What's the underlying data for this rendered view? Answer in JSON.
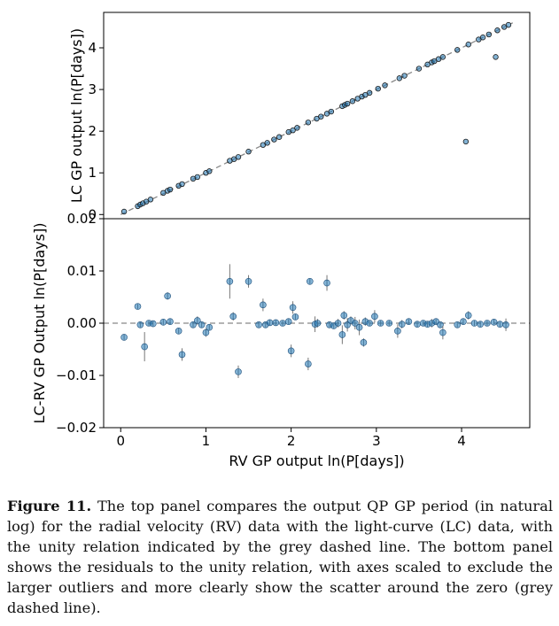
{
  "chart_data": [
    {
      "type": "scatter",
      "panel": "top",
      "xlabel": "",
      "ylabel": "LC GP output ln(P[days])",
      "xlim": [
        -0.2,
        4.8
      ],
      "ylim": [
        -0.1,
        4.85
      ],
      "yticks": [
        0,
        1,
        2,
        3,
        4
      ],
      "reference_line": "unity (y = x), grey dashed",
      "points": [
        [
          0.04,
          0.07
        ],
        [
          0.2,
          0.2
        ],
        [
          0.23,
          0.24
        ],
        [
          0.26,
          0.27
        ],
        [
          0.3,
          0.31
        ],
        [
          0.35,
          0.36
        ],
        [
          0.5,
          0.52
        ],
        [
          0.55,
          0.57
        ],
        [
          0.58,
          0.6
        ],
        [
          0.68,
          0.69
        ],
        [
          0.72,
          0.73
        ],
        [
          0.85,
          0.86
        ],
        [
          0.9,
          0.9
        ],
        [
          1.0,
          1.0
        ],
        [
          1.04,
          1.04
        ],
        [
          1.28,
          1.29
        ],
        [
          1.33,
          1.33
        ],
        [
          1.38,
          1.38
        ],
        [
          1.5,
          1.51
        ],
        [
          1.67,
          1.67
        ],
        [
          1.72,
          1.72
        ],
        [
          1.8,
          1.8
        ],
        [
          1.86,
          1.86
        ],
        [
          1.97,
          1.98
        ],
        [
          2.02,
          2.02
        ],
        [
          2.07,
          2.08
        ],
        [
          2.2,
          2.21
        ],
        [
          2.3,
          2.3
        ],
        [
          2.35,
          2.35
        ],
        [
          2.42,
          2.42
        ],
        [
          2.47,
          2.47
        ],
        [
          2.6,
          2.6
        ],
        [
          2.63,
          2.63
        ],
        [
          2.66,
          2.66
        ],
        [
          2.72,
          2.72
        ],
        [
          2.78,
          2.78
        ],
        [
          2.83,
          2.83
        ],
        [
          2.87,
          2.87
        ],
        [
          2.92,
          2.92
        ],
        [
          3.02,
          3.02
        ],
        [
          3.1,
          3.1
        ],
        [
          3.27,
          3.27
        ],
        [
          3.33,
          3.33
        ],
        [
          3.5,
          3.5
        ],
        [
          3.6,
          3.6
        ],
        [
          3.65,
          3.65
        ],
        [
          3.68,
          3.68
        ],
        [
          3.73,
          3.73
        ],
        [
          3.78,
          3.78
        ],
        [
          3.95,
          3.95
        ],
        [
          4.08,
          4.08
        ],
        [
          4.2,
          4.2
        ],
        [
          4.25,
          4.25
        ],
        [
          4.32,
          4.32
        ],
        [
          4.42,
          4.42
        ],
        [
          4.5,
          4.5
        ],
        [
          4.55,
          4.55
        ],
        [
          4.05,
          1.75
        ],
        [
          4.4,
          3.78
        ]
      ]
    },
    {
      "type": "scatter",
      "panel": "bottom",
      "xlabel": "RV GP output ln(P[days])",
      "ylabel": "LC-RV GP Output ln(P[days])",
      "xlim": [
        -0.2,
        4.8
      ],
      "ylim": [
        -0.02,
        0.02
      ],
      "xticks": [
        0,
        1,
        2,
        3,
        4
      ],
      "yticks": [
        -0.02,
        -0.01,
        0.0,
        0.01,
        0.02
      ],
      "reference_line": "zero, grey dashed",
      "points_with_error": [
        [
          0.04,
          -0.0027,
          0.0005
        ],
        [
          0.2,
          0.0032,
          0.0005
        ],
        [
          0.23,
          -0.0003,
          0.0005
        ],
        [
          0.28,
          -0.0045,
          0.0028
        ],
        [
          0.33,
          0.0,
          0.0005
        ],
        [
          0.38,
          -0.0001,
          0.0005
        ],
        [
          0.5,
          0.0002,
          0.0005
        ],
        [
          0.55,
          0.0052,
          0.0007
        ],
        [
          0.58,
          0.0003,
          0.0005
        ],
        [
          0.68,
          -0.0015,
          0.0005
        ],
        [
          0.72,
          -0.006,
          0.0012
        ],
        [
          0.85,
          -0.0003,
          0.0005
        ],
        [
          0.9,
          0.0005,
          0.0008
        ],
        [
          0.95,
          -0.0003,
          0.0005
        ],
        [
          1.0,
          -0.0018,
          0.0008
        ],
        [
          1.04,
          -0.0008,
          0.0005
        ],
        [
          1.28,
          0.008,
          0.0033
        ],
        [
          1.32,
          0.0013,
          0.0008
        ],
        [
          1.38,
          -0.0093,
          0.0012
        ],
        [
          1.5,
          0.008,
          0.0012
        ],
        [
          1.62,
          -0.0003,
          0.0005
        ],
        [
          1.67,
          0.0035,
          0.0012
        ],
        [
          1.7,
          -0.0003,
          0.0005
        ],
        [
          1.75,
          0.0001,
          0.0005
        ],
        [
          1.82,
          0.0001,
          0.0005
        ],
        [
          1.9,
          0.0,
          0.0005
        ],
        [
          1.97,
          0.0003,
          0.0005
        ],
        [
          2.0,
          -0.0053,
          0.0012
        ],
        [
          2.02,
          0.003,
          0.0012
        ],
        [
          2.05,
          0.0012,
          0.0005
        ],
        [
          2.2,
          -0.0078,
          0.0012
        ],
        [
          2.22,
          0.008,
          0.0005
        ],
        [
          2.28,
          -0.0002,
          0.0015
        ],
        [
          2.31,
          0.0,
          0.0008
        ],
        [
          2.42,
          0.0077,
          0.0015
        ],
        [
          2.45,
          -0.0003,
          0.0005
        ],
        [
          2.5,
          -0.0005,
          0.0005
        ],
        [
          2.55,
          0.0,
          0.0008
        ],
        [
          2.6,
          -0.0022,
          0.0018
        ],
        [
          2.62,
          0.0015,
          0.0008
        ],
        [
          2.66,
          -0.0003,
          0.0013
        ],
        [
          2.7,
          0.0005,
          0.0008
        ],
        [
          2.75,
          0.0,
          0.0012
        ],
        [
          2.8,
          -0.0008,
          0.0015
        ],
        [
          2.85,
          -0.0037,
          0.0008
        ],
        [
          2.87,
          0.0003,
          0.0008
        ],
        [
          2.92,
          0.0,
          0.0005
        ],
        [
          2.98,
          0.0013,
          0.0012
        ],
        [
          3.05,
          0.0,
          0.0005
        ],
        [
          3.15,
          0.0,
          0.0005
        ],
        [
          3.25,
          -0.0015,
          0.0013
        ],
        [
          3.3,
          -0.0002,
          0.0008
        ],
        [
          3.38,
          0.0003,
          0.0005
        ],
        [
          3.48,
          -0.0002,
          0.0005
        ],
        [
          3.55,
          0.0,
          0.0005
        ],
        [
          3.6,
          -0.0002,
          0.0005
        ],
        [
          3.65,
          0.0,
          0.0008
        ],
        [
          3.7,
          0.0003,
          0.0005
        ],
        [
          3.75,
          -0.0003,
          0.0005
        ],
        [
          3.78,
          -0.0018,
          0.0013
        ],
        [
          3.95,
          -0.0003,
          0.0005
        ],
        [
          4.02,
          0.0003,
          0.0005
        ],
        [
          4.08,
          0.0015,
          0.0008
        ],
        [
          4.15,
          0.0,
          0.0005
        ],
        [
          4.22,
          -0.0002,
          0.0005
        ],
        [
          4.3,
          0.0,
          0.0005
        ],
        [
          4.38,
          0.0002,
          0.0005
        ],
        [
          4.45,
          -0.0002,
          0.0005
        ],
        [
          4.52,
          -0.0003,
          0.0012
        ]
      ],
      "marker_color": "#1f77b4"
    }
  ],
  "labels": {
    "top_ylabel": "LC GP output ln(P[days])",
    "bottom_ylabel": "LC-RV GP Output ln(P[days])",
    "xlabel": "RV GP output ln(P[days])",
    "top_yticks": [
      "0",
      "1",
      "2",
      "3",
      "4"
    ],
    "bottom_yticks": [
      "−0.02",
      "−0.01",
      "0.00",
      "0.01",
      "0.02"
    ],
    "xticks": [
      "0",
      "1",
      "2",
      "3",
      "4"
    ]
  },
  "caption": {
    "label": "Figure 11.",
    "text": "The top panel compares the output QP GP period (in natural log) for the radial velocity (RV) data with the light-curve (LC) data, with the unity relation indicated by the grey dashed line. The bottom panel shows the residuals to the unity relation, with axes scaled to exclude the larger outliers and more clearly show the scatter around the zero (grey dashed line)."
  }
}
